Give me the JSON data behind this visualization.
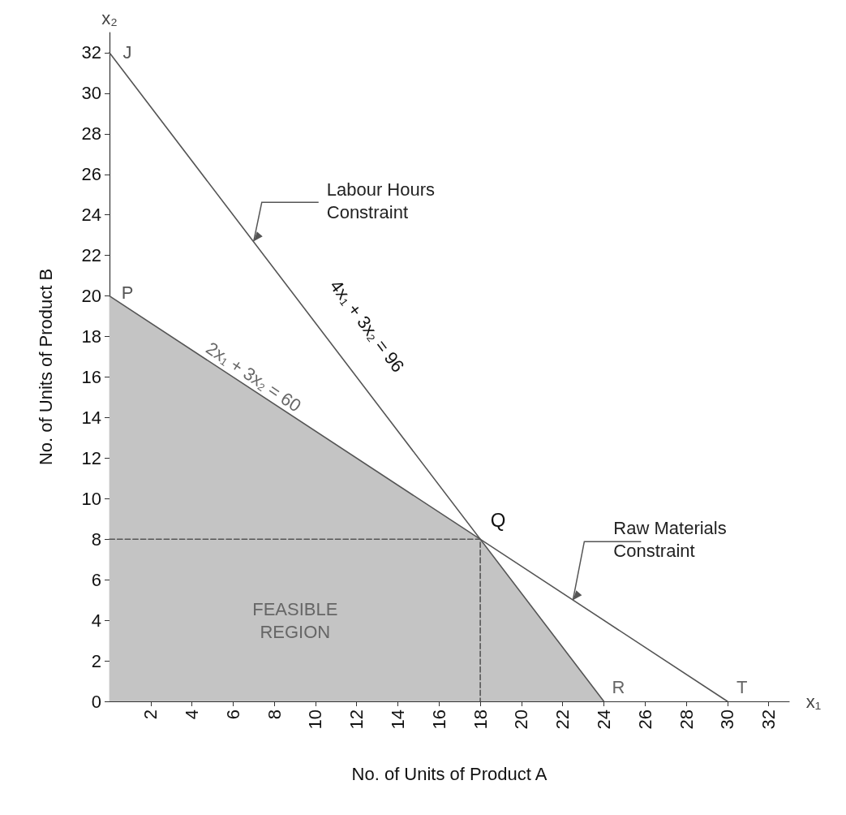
{
  "chart_data": {
    "type": "line",
    "xlabel": "No. of Units of Product A",
    "ylabel": "No. of Units of Product B",
    "series": [
      {
        "type": "area",
        "color": "#c4c4c4",
        "x": [
          0,
          0,
          18,
          24
        ],
        "values": [
          0,
          20,
          8,
          0
        ]
      },
      {
        "color": "#555555",
        "x": [
          0,
          24
        ],
        "values": [
          32,
          0
        ]
      },
      {
        "color": "#555555",
        "x": [
          0,
          30
        ],
        "values": [
          20,
          0
        ]
      },
      {
        "color": "#555555",
        "line_style": "dashed",
        "x": [
          0,
          18,
          18
        ],
        "values": [
          8,
          8,
          0
        ]
      }
    ],
    "xlim": [
      0,
      33
    ],
    "ylim": [
      0,
      33
    ],
    "xticks": [
      2,
      4,
      6,
      8,
      10,
      12,
      14,
      16,
      18,
      20,
      22,
      24,
      26,
      28,
      30,
      32
    ],
    "yticks": [
      0,
      2,
      4,
      6,
      8,
      10,
      12,
      14,
      16,
      18,
      20,
      22,
      24,
      26,
      28,
      30,
      32
    ],
    "grid": false,
    "marker": "none",
    "line_style": "solid",
    "annotations": [
      {
        "text": "J",
        "x": 0,
        "y": 32
      },
      {
        "text": "P",
        "x": 0,
        "y": 20
      },
      {
        "text": "Labour Hours\nConstraint",
        "x": 7,
        "y": 22.7
      },
      "4x$_{1}$ + 3x$_{2}$ = 96",
      "2x$_{1}$ + 3x$_{2}$ = 60",
      {
        "text": "Q",
        "x": 18,
        "y": 8
      },
      {
        "text": "Raw Materials\nConstraint",
        "x": 22.5,
        "y": 5
      },
      "FEASIBLE\nREGION",
      {
        "text": "R",
        "x": 24,
        "y": 0
      },
      {
        "text": "T",
        "x": 30,
        "y": 0
      },
      "x₁",
      "x₂"
    ]
  }
}
